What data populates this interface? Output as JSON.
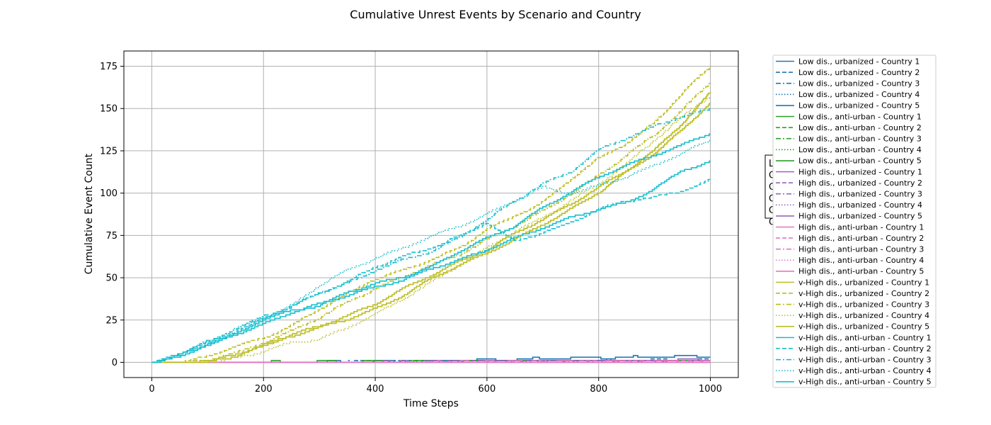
{
  "chart_data": {
    "type": "line",
    "title": "Cumulative Unrest Events by Scenario and Country",
    "xlabel": "Time Steps",
    "ylabel": "Cumulative Event Count",
    "xlim": [
      -50,
      1050
    ],
    "ylim": [
      -9,
      184
    ],
    "xticks": [
      0,
      200,
      400,
      600,
      800,
      1000
    ],
    "yticks": [
      0,
      25,
      50,
      75,
      100,
      125,
      150,
      175
    ],
    "grid": true,
    "legend_placement": "outside right",
    "colors": {
      "low_urban": "#1f77b4",
      "low_anti": "#2ca02c",
      "high_urban": "#9467bd",
      "high_anti": "#e377c2",
      "vhigh_urban": "#bcbd22",
      "vhigh_anti": "#17becf"
    },
    "hidden_legend": {
      "title": "Line Styles",
      "entries": [
        "Country 1",
        "Country 2",
        "Country 3",
        "Country 4",
        "Country 5"
      ]
    },
    "series": [
      {
        "name": "Low dis., urbanized - Country 1",
        "color": "#1f77b4",
        "dash": "solid",
        "x": [
          0,
          1000
        ],
        "y": [
          0,
          0
        ]
      },
      {
        "name": "Low dis., urbanized - Country 2",
        "color": "#1f77b4",
        "dash": "dashed",
        "x": [
          0,
          620,
          1000
        ],
        "y": [
          0,
          1,
          2
        ]
      },
      {
        "name": "Low dis., urbanized - Country 3",
        "color": "#1f77b4",
        "dash": "dashdot",
        "x": [
          0,
          700,
          1000
        ],
        "y": [
          0,
          1,
          1
        ]
      },
      {
        "name": "Low dis., urbanized - Country 4",
        "color": "#1f77b4",
        "dash": "dotted",
        "x": [
          0,
          1000
        ],
        "y": [
          0,
          0
        ]
      },
      {
        "name": "Low dis., urbanized - Country 5",
        "color": "#1f77b4",
        "dash": "solid",
        "x": [
          0,
          500,
          740,
          980,
          1000
        ],
        "y": [
          0,
          1,
          3,
          4,
          4
        ]
      },
      {
        "name": "Low dis., anti-urban - Country 1",
        "color": "#2ca02c",
        "dash": "solid",
        "x": [
          0,
          380,
          1000
        ],
        "y": [
          0,
          1,
          1
        ]
      },
      {
        "name": "Low dis., anti-urban - Country 2",
        "color": "#2ca02c",
        "dash": "dashed",
        "x": [
          0,
          640,
          1000
        ],
        "y": [
          0,
          1,
          1
        ]
      },
      {
        "name": "Low dis., anti-urban - Country 3",
        "color": "#2ca02c",
        "dash": "dashdot",
        "x": [
          0,
          1000
        ],
        "y": [
          0,
          0
        ]
      },
      {
        "name": "Low dis., anti-urban - Country 4",
        "color": "#2ca02c",
        "dash": "dotted",
        "x": [
          0,
          800,
          1000
        ],
        "y": [
          0,
          1,
          1
        ]
      },
      {
        "name": "Low dis., anti-urban - Country 5",
        "color": "#2ca02c",
        "dash": "solid",
        "x": [
          0,
          1000
        ],
        "y": [
          0,
          0
        ]
      },
      {
        "name": "High dis., urbanized - Country 1",
        "color": "#9467bd",
        "dash": "solid",
        "x": [
          0,
          760,
          1000
        ],
        "y": [
          0,
          1,
          2
        ]
      },
      {
        "name": "High dis., urbanized - Country 2",
        "color": "#9467bd",
        "dash": "dashed",
        "x": [
          0,
          900,
          1000
        ],
        "y": [
          0,
          1,
          1
        ]
      },
      {
        "name": "High dis., urbanized - Country 3",
        "color": "#9467bd",
        "dash": "dashdot",
        "x": [
          0,
          1000
        ],
        "y": [
          0,
          0
        ]
      },
      {
        "name": "High dis., urbanized - Country 4",
        "color": "#9467bd",
        "dash": "dotted",
        "x": [
          0,
          1000
        ],
        "y": [
          0,
          0
        ]
      },
      {
        "name": "High dis., urbanized - Country 5",
        "color": "#9467bd",
        "dash": "solid",
        "x": [
          0,
          820,
          1000
        ],
        "y": [
          0,
          1,
          1
        ]
      },
      {
        "name": "High dis., anti-urban - Country 1",
        "color": "#e377c2",
        "dash": "solid",
        "x": [
          0,
          1000
        ],
        "y": [
          0,
          0
        ]
      },
      {
        "name": "High dis., anti-urban - Country 2",
        "color": "#e377c2",
        "dash": "dashed",
        "x": [
          0,
          1000
        ],
        "y": [
          0,
          1
        ]
      },
      {
        "name": "High dis., anti-urban - Country 3",
        "color": "#e377c2",
        "dash": "dashdot",
        "x": [
          0,
          1000
        ],
        "y": [
          0,
          0
        ]
      },
      {
        "name": "High dis., anti-urban - Country 4",
        "color": "#e377c2",
        "dash": "dotted",
        "x": [
          0,
          1000
        ],
        "y": [
          0,
          0
        ]
      },
      {
        "name": "High dis., anti-urban - Country 5",
        "color": "#e377c2",
        "dash": "solid",
        "x": [
          0,
          1000
        ],
        "y": [
          0,
          1
        ]
      },
      {
        "name": "v-High dis., urbanized - Country 1",
        "color": "#bcbd22",
        "dash": "solid",
        "x": [
          0,
          60,
          100,
          150,
          200,
          250,
          300,
          350,
          400,
          450,
          500,
          550,
          600,
          650,
          700,
          750,
          800,
          850,
          900,
          950,
          1000
        ],
        "y": [
          0,
          0,
          1,
          4,
          10,
          17,
          22,
          28,
          35,
          44,
          52,
          60,
          67,
          77,
          85,
          94,
          104,
          114,
          126,
          142,
          160
        ]
      },
      {
        "name": "v-High dis., urbanized - Country 2",
        "color": "#bcbd22",
        "dash": "dashed",
        "x": [
          0,
          60,
          100,
          150,
          200,
          250,
          300,
          350,
          400,
          450,
          500,
          550,
          600,
          650,
          700,
          750,
          800,
          850,
          900,
          950,
          1000
        ],
        "y": [
          0,
          1,
          4,
          10,
          15,
          22,
          32,
          41,
          50,
          55,
          61,
          68,
          79,
          87,
          95,
          109,
          121,
          130,
          142,
          160,
          175
        ]
      },
      {
        "name": "v-High dis., urbanized - Country 3",
        "color": "#bcbd22",
        "dash": "dashdot",
        "x": [
          0,
          60,
          100,
          150,
          200,
          250,
          300,
          350,
          400,
          450,
          500,
          550,
          600,
          650,
          700,
          750,
          800,
          850,
          900,
          950,
          1000
        ],
        "y": [
          0,
          0,
          2,
          6,
          12,
          19,
          27,
          36,
          44,
          51,
          58,
          64,
          73,
          81,
          90,
          100,
          111,
          123,
          135,
          150,
          166
        ]
      },
      {
        "name": "v-High dis., urbanized - Country 4",
        "color": "#bcbd22",
        "dash": "dotted",
        "x": [
          0,
          80,
          120,
          150,
          200,
          250,
          300,
          350,
          400,
          450,
          500,
          550,
          600,
          650,
          700,
          750,
          800,
          850,
          900,
          950,
          1000
        ],
        "y": [
          0,
          0,
          1,
          3,
          7,
          12,
          14,
          21,
          29,
          38,
          48,
          58,
          68,
          78,
          86,
          96,
          106,
          118,
          132,
          146,
          158
        ]
      },
      {
        "name": "v-High dis., urbanized - Country 5",
        "color": "#bcbd22",
        "dash": "solid",
        "x": [
          0,
          60,
          100,
          150,
          200,
          250,
          300,
          350,
          400,
          450,
          500,
          550,
          600,
          650,
          700,
          750,
          800,
          850,
          900,
          950,
          1000
        ],
        "y": [
          0,
          0,
          1,
          5,
          11,
          16,
          21,
          26,
          32,
          40,
          50,
          58,
          65,
          73,
          82,
          91,
          101,
          113,
          124,
          138,
          154
        ]
      },
      {
        "name": "v-High dis., anti-urban - Country 1",
        "color": "#17becf",
        "dash": "solid",
        "x": [
          0,
          50,
          100,
          150,
          200,
          250,
          300,
          350,
          400,
          450,
          500,
          550,
          600,
          650,
          700,
          750,
          800,
          850,
          900,
          950,
          1000
        ],
        "y": [
          0,
          4,
          11,
          17,
          23,
          30,
          35,
          40,
          45,
          49,
          56,
          61,
          67,
          74,
          80,
          86,
          91,
          95,
          103,
          114,
          119
        ]
      },
      {
        "name": "v-High dis., anti-urban - Country 2",
        "color": "#17becf",
        "dash": "dashed",
        "x": [
          0,
          50,
          100,
          150,
          200,
          250,
          300,
          350,
          400,
          450,
          500,
          550,
          600,
          650,
          700,
          750,
          800,
          850,
          900,
          950,
          1000
        ],
        "y": [
          0,
          6,
          12,
          19,
          26,
          34,
          41,
          48,
          57,
          63,
          68,
          75,
          83,
          72,
          77,
          83,
          91,
          96,
          98,
          102,
          108
        ]
      },
      {
        "name": "v-High dis., anti-urban - Country 3",
        "color": "#17becf",
        "dash": "dashdot",
        "x": [
          0,
          50,
          100,
          150,
          200,
          250,
          300,
          350,
          400,
          450,
          500,
          550,
          600,
          650,
          700,
          750,
          800,
          850,
          900,
          950,
          1000
        ],
        "y": [
          0,
          5,
          13,
          20,
          28,
          33,
          42,
          47,
          55,
          61,
          66,
          74,
          85,
          96,
          106,
          113,
          126,
          133,
          140,
          146,
          150
        ]
      },
      {
        "name": "v-High dis., anti-urban - Country 4",
        "color": "#17becf",
        "dash": "dotted",
        "x": [
          0,
          50,
          100,
          150,
          200,
          250,
          300,
          350,
          400,
          450,
          500,
          550,
          600,
          650,
          700,
          750,
          800,
          850,
          900,
          950,
          1000
        ],
        "y": [
          0,
          5,
          13,
          20,
          27,
          34,
          46,
          55,
          62,
          68,
          75,
          81,
          88,
          96,
          104,
          100,
          105,
          110,
          117,
          124,
          132
        ]
      },
      {
        "name": "v-High dis., anti-urban - Country 5",
        "color": "#17becf",
        "dash": "solid",
        "x": [
          0,
          50,
          100,
          150,
          200,
          250,
          300,
          350,
          400,
          450,
          500,
          550,
          600,
          650,
          700,
          750,
          800,
          850,
          900,
          950,
          1000
        ],
        "y": [
          0,
          5,
          11,
          17,
          26,
          31,
          34,
          42,
          47,
          51,
          57,
          66,
          74,
          81,
          92,
          101,
          110,
          117,
          123,
          129,
          136
        ]
      }
    ]
  }
}
